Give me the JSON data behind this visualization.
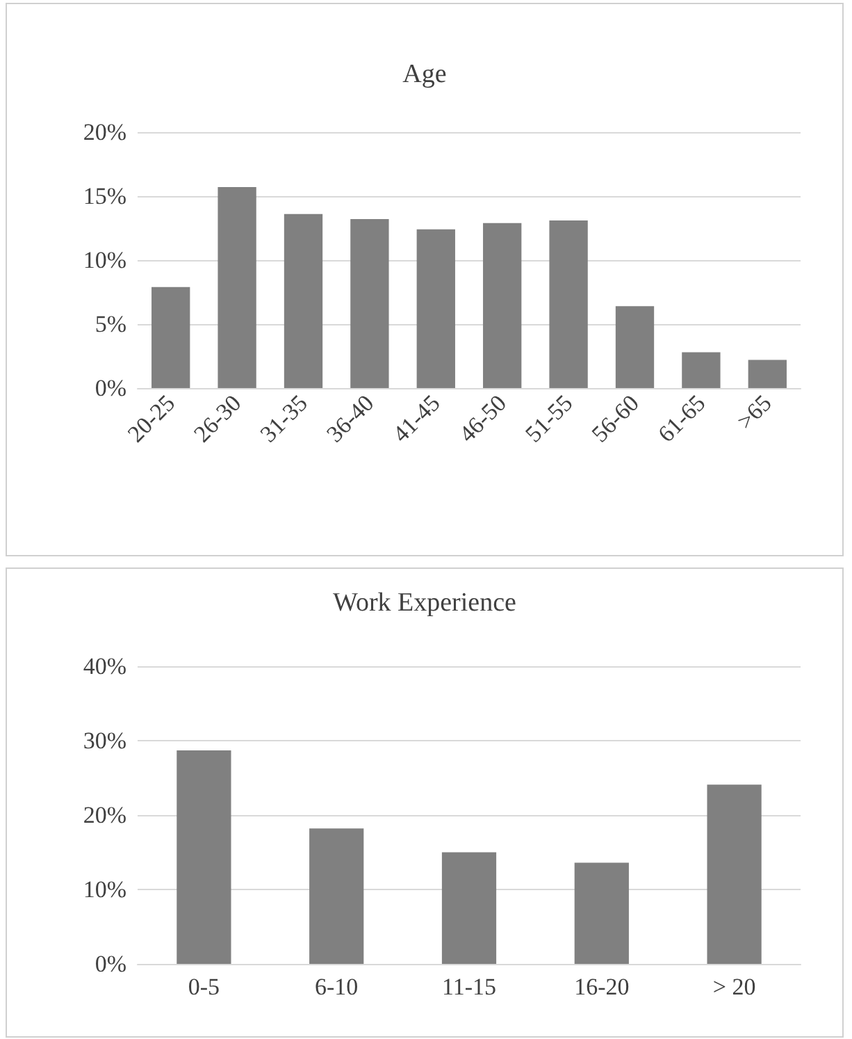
{
  "chart_data": [
    {
      "type": "bar",
      "title": "Age",
      "categories": [
        "20-25",
        "26-30",
        "31-35",
        "36-40",
        "41-45",
        "46-50",
        "51-55",
        "56-60",
        "61-65",
        ">65"
      ],
      "values": [
        7.9,
        15.7,
        13.6,
        13.2,
        12.4,
        12.9,
        13.1,
        6.4,
        2.8,
        2.2
      ],
      "color": "#808080",
      "ylim": [
        0,
        20
      ],
      "yticks": [
        {
          "value": 0,
          "label": "0%"
        },
        {
          "value": 5,
          "label": "5%"
        },
        {
          "value": 10,
          "label": "10%"
        },
        {
          "value": 15,
          "label": "15%"
        },
        {
          "value": 20,
          "label": "20%"
        }
      ],
      "grid": "y"
    },
    {
      "type": "bar",
      "title": "Work Experience",
      "categories": [
        "0-5",
        "6-10",
        "11-15",
        "16-20",
        "> 20"
      ],
      "values": [
        28.7,
        18.2,
        15.0,
        13.6,
        24.1
      ],
      "color": "#808080",
      "ylim": [
        0,
        40
      ],
      "yticks": [
        {
          "value": 0,
          "label": "0%"
        },
        {
          "value": 10,
          "label": "10%"
        },
        {
          "value": 20,
          "label": "20%"
        },
        {
          "value": 30,
          "label": "30%"
        },
        {
          "value": 40,
          "label": "40%"
        }
      ],
      "grid": "y"
    }
  ]
}
